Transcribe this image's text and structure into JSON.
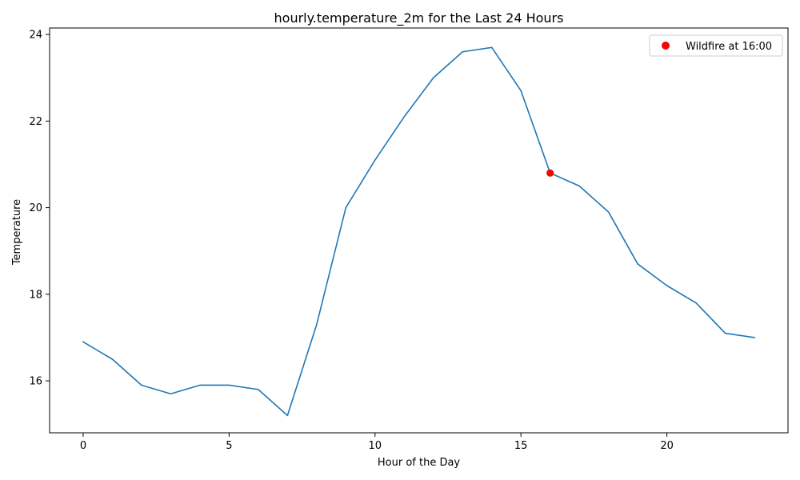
{
  "chart_data": {
    "type": "line",
    "title": "hourly.temperature_2m for the Last 24 Hours",
    "xlabel": "Hour of the Day",
    "ylabel": "Temperature",
    "xlim": [
      -1.15,
      24.15
    ],
    "ylim": [
      14.8,
      24.15
    ],
    "xticks": [
      0,
      5,
      10,
      15,
      20
    ],
    "yticks": [
      16,
      18,
      20,
      22,
      24
    ],
    "grid": false,
    "legend_position": "top-right",
    "series": [
      {
        "values": [
          16.9,
          16.5,
          15.9,
          15.7,
          15.9,
          15.9,
          15.8,
          15.2,
          17.3,
          20.0,
          21.1,
          22.1,
          23.0,
          23.6,
          23.7,
          22.7,
          20.8,
          20.5,
          19.9,
          18.7,
          18.2,
          17.8,
          17.1,
          17.0
        ],
        "x": [
          0,
          1,
          2,
          3,
          4,
          5,
          6,
          7,
          8,
          9,
          10,
          11,
          12,
          13,
          14,
          15,
          16,
          17,
          18,
          19,
          20,
          21,
          22,
          23
        ],
        "color": "#1f77b4"
      }
    ],
    "markers": [
      {
        "name": "Wildfire at 16:00",
        "x": 16,
        "y": 20.8,
        "color": "#ff0000"
      }
    ]
  }
}
